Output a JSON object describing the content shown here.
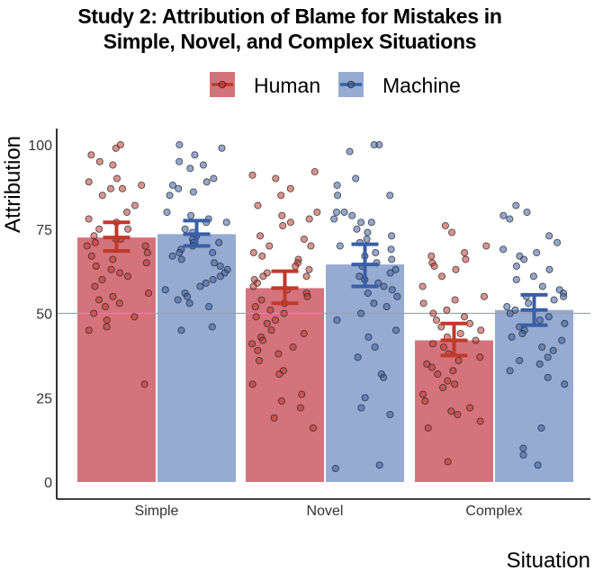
{
  "chart_data": {
    "type": "bar",
    "title_lines": [
      "Study 2: Attribution of Blame for Mistakes in",
      "Simple, Novel, and Complex Situations"
    ],
    "xlabel": "Situation",
    "ylabel": "Attribution",
    "ylim": [
      0,
      100
    ],
    "yticks": [
      "0",
      "25",
      "50",
      "75",
      "100"
    ],
    "reference_line": 50,
    "categories": [
      "Simple",
      "Novel",
      "Complex"
    ],
    "legend_position": "top",
    "series": [
      {
        "name": "Human",
        "color": "#c0392b",
        "bar_color": "#d4737c",
        "values": [
          72.5,
          57.5,
          42
        ],
        "error_low": [
          68.5,
          53,
          37.5
        ],
        "error_high": [
          77,
          62.5,
          47
        ]
      },
      {
        "name": "Machine",
        "color": "#3a5fa6",
        "bar_color": "#95abd2",
        "values": [
          73.5,
          64.5,
          51
        ],
        "error_low": [
          70,
          58,
          46.5
        ],
        "error_high": [
          77.5,
          70.5,
          55.5
        ]
      }
    ],
    "points": [
      [
        [
          99,
          100,
          97,
          95,
          94,
          90,
          89,
          88,
          87,
          87,
          85,
          82,
          80,
          78,
          77,
          75,
          75,
          73,
          72,
          72,
          71,
          70,
          70,
          68,
          67,
          66,
          65,
          64,
          63,
          62,
          61,
          60,
          58,
          56,
          55,
          54,
          53,
          52,
          50,
          49,
          48,
          46,
          45,
          29
        ],
        [
          100,
          99,
          97,
          95,
          94,
          93,
          90,
          89,
          88,
          87,
          86,
          85,
          80,
          79,
          78,
          77,
          77,
          75,
          74,
          73,
          72,
          71,
          71,
          70,
          69,
          68,
          68,
          67,
          66,
          65,
          64,
          63,
          62,
          61,
          60,
          59,
          58,
          57,
          56,
          55,
          54,
          53,
          52,
          46,
          45
        ]
      ],
      [
        [
          92,
          91,
          90,
          87,
          85,
          82,
          80,
          79,
          78,
          77,
          76,
          73,
          72,
          70,
          70,
          68,
          67,
          66,
          65,
          64,
          63,
          62,
          61,
          61,
          60,
          59,
          58,
          57,
          56,
          55,
          54,
          53,
          52,
          51,
          50,
          49,
          48,
          47,
          45,
          44,
          43,
          42,
          41,
          40,
          39,
          38,
          36,
          33,
          32,
          29,
          26,
          24,
          22,
          19,
          16
        ],
        [
          100,
          100,
          98,
          90,
          88,
          85,
          85,
          80,
          80,
          79,
          78,
          77,
          77,
          75,
          74,
          73,
          72,
          71,
          70,
          69,
          68,
          67,
          66,
          65,
          64,
          63,
          62,
          61,
          60,
          59,
          58,
          57,
          56,
          55,
          53,
          52,
          50,
          48,
          45,
          43,
          40,
          37,
          32,
          31,
          25,
          22,
          20,
          5,
          4
        ]
      ],
      [
        [
          76,
          74,
          70,
          68,
          67,
          66,
          65,
          64,
          63,
          61,
          58,
          55,
          54,
          53,
          51,
          50,
          49,
          48,
          47,
          46,
          45,
          44,
          43,
          42,
          41,
          40,
          38,
          37,
          36,
          35,
          34,
          33,
          32,
          30,
          29,
          28,
          26,
          24,
          22,
          21,
          20,
          18,
          16,
          6
        ],
        [
          82,
          80,
          79,
          78,
          73,
          71,
          69,
          68,
          67,
          66,
          64,
          63,
          61,
          60,
          58,
          57,
          56,
          55,
          55,
          54,
          53,
          52,
          51,
          50,
          49,
          48,
          47,
          46,
          45,
          44,
          43,
          42,
          40,
          39,
          37,
          36,
          35,
          33,
          31,
          29,
          16,
          10,
          8,
          5
        ]
      ]
    ]
  }
}
